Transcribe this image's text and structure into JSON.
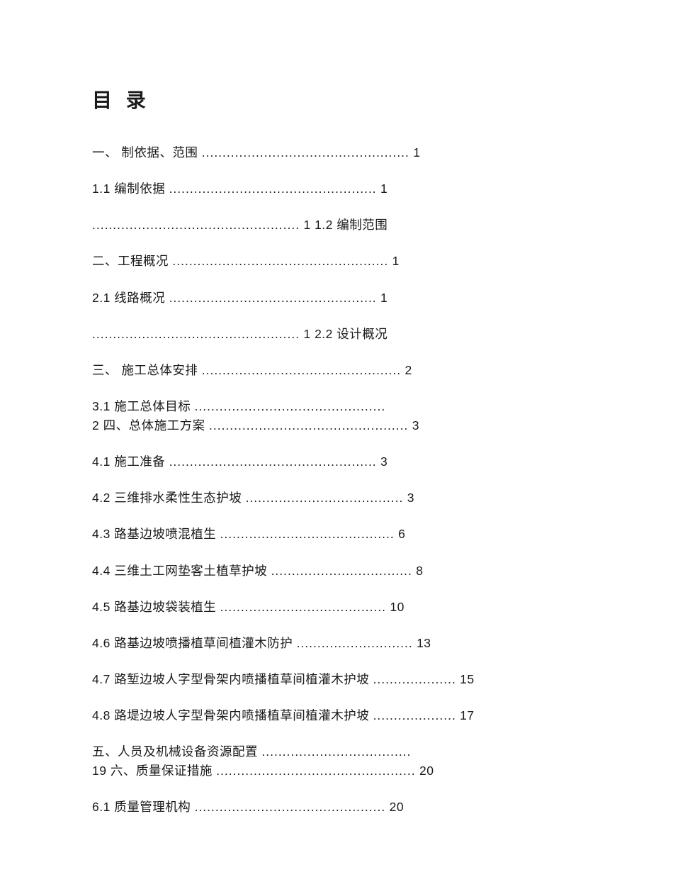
{
  "document": {
    "title": "目 录",
    "background_color": "#ffffff",
    "text_color": "#1a1a1a",
    "title_fontsize": 28,
    "body_fontsize": 17.5,
    "font_family": "Microsoft YaHei",
    "lines": [
      {
        "segments": [
          {
            "kind": "label",
            "text": "一、  制依据、范围 "
          },
          {
            "kind": "dots",
            "count": 50
          },
          {
            "kind": "page",
            "text": " 1"
          }
        ]
      },
      {
        "segments": [
          {
            "kind": "label",
            "text": "1.1 编制依据 "
          },
          {
            "kind": "dots",
            "count": 50
          },
          {
            "kind": "page",
            "text": " 1"
          }
        ]
      },
      {
        "segments": [
          {
            "kind": "dots",
            "count": 50
          },
          {
            "kind": "page",
            "text": " 1 "
          },
          {
            "kind": "label",
            "text": "1.2 编制范围"
          }
        ]
      },
      {
        "segments": [
          {
            "kind": "label",
            "text": "二、工程概况 "
          },
          {
            "kind": "dots",
            "count": 52
          },
          {
            "kind": "page",
            "text": " 1"
          }
        ]
      },
      {
        "segments": [
          {
            "kind": "label",
            "text": "2.1 线路概况 "
          },
          {
            "kind": "dots",
            "count": 50
          },
          {
            "kind": "page",
            "text": " 1"
          }
        ]
      },
      {
        "segments": [
          {
            "kind": "dots",
            "count": 50
          },
          {
            "kind": "page",
            "text": " 1 "
          },
          {
            "kind": "label",
            "text": "2.2 设计概况"
          }
        ]
      },
      {
        "segments": [
          {
            "kind": "label",
            "text": "三、  施工总体安排 "
          },
          {
            "kind": "dots",
            "count": 48
          },
          {
            "kind": "page",
            "text": " 2"
          }
        ]
      },
      {
        "segments": [
          {
            "kind": "label",
            "text": "3.1 施工总体目标 "
          },
          {
            "kind": "dots",
            "count": 46
          },
          {
            "kind": "page",
            "text": " 2 "
          },
          {
            "kind": "label",
            "text": "四、总体施工方案 "
          },
          {
            "kind": "dots",
            "count": 48
          },
          {
            "kind": "page",
            "text": " 3"
          }
        ]
      },
      {
        "segments": [
          {
            "kind": "label",
            "text": "4.1 施工准备 "
          },
          {
            "kind": "dots",
            "count": 50
          },
          {
            "kind": "page",
            "text": " 3"
          }
        ]
      },
      {
        "segments": [
          {
            "kind": "label",
            "text": "4.2 三维排水柔性生态护坡 "
          },
          {
            "kind": "dots",
            "count": 38
          },
          {
            "kind": "page",
            "text": " 3"
          }
        ]
      },
      {
        "segments": [
          {
            "kind": "label",
            "text": "4.3 路基边坡喷混植生 "
          },
          {
            "kind": "dots",
            "count": 42
          },
          {
            "kind": "page",
            "text": " 6"
          }
        ]
      },
      {
        "segments": [
          {
            "kind": "label",
            "text": "4.4 三维土工网垫客土植草护坡 "
          },
          {
            "kind": "dots",
            "count": 34
          },
          {
            "kind": "page",
            "text": " 8"
          }
        ]
      },
      {
        "segments": [
          {
            "kind": "label",
            "text": "4.5 路基边坡袋装植生 "
          },
          {
            "kind": "dots",
            "count": 40
          },
          {
            "kind": "page",
            "text": " 10"
          }
        ]
      },
      {
        "segments": [
          {
            "kind": "label",
            "text": "4.6 路基边坡喷播植草间植灌木防护 "
          },
          {
            "kind": "dots",
            "count": 28
          },
          {
            "kind": "page",
            "text": " 13"
          }
        ]
      },
      {
        "segments": [
          {
            "kind": "label",
            "text": "4.7 路堑边坡人字型骨架内喷播植草间植灌木护坡 "
          },
          {
            "kind": "dots",
            "count": 20
          },
          {
            "kind": "page",
            "text": " 15"
          }
        ]
      },
      {
        "segments": [
          {
            "kind": "label",
            "text": "4.8 路堤边坡人字型骨架内喷播植草间植灌木护坡 "
          },
          {
            "kind": "dots",
            "count": 20
          },
          {
            "kind": "page",
            "text": " 17"
          }
        ]
      },
      {
        "segments": [
          {
            "kind": "label",
            "text": "五、人员及机械设备资源配置 "
          },
          {
            "kind": "dots",
            "count": 36
          },
          {
            "kind": "page",
            "text": " 19 "
          },
          {
            "kind": "label",
            "text": "六、质量保证措施 "
          },
          {
            "kind": "dots",
            "count": 48
          },
          {
            "kind": "page",
            "text": " 20"
          }
        ]
      },
      {
        "segments": [
          {
            "kind": "label",
            "text": "6.1 质量管理机构 "
          },
          {
            "kind": "dots",
            "count": 46
          },
          {
            "kind": "page",
            "text": " 20"
          }
        ]
      }
    ]
  }
}
